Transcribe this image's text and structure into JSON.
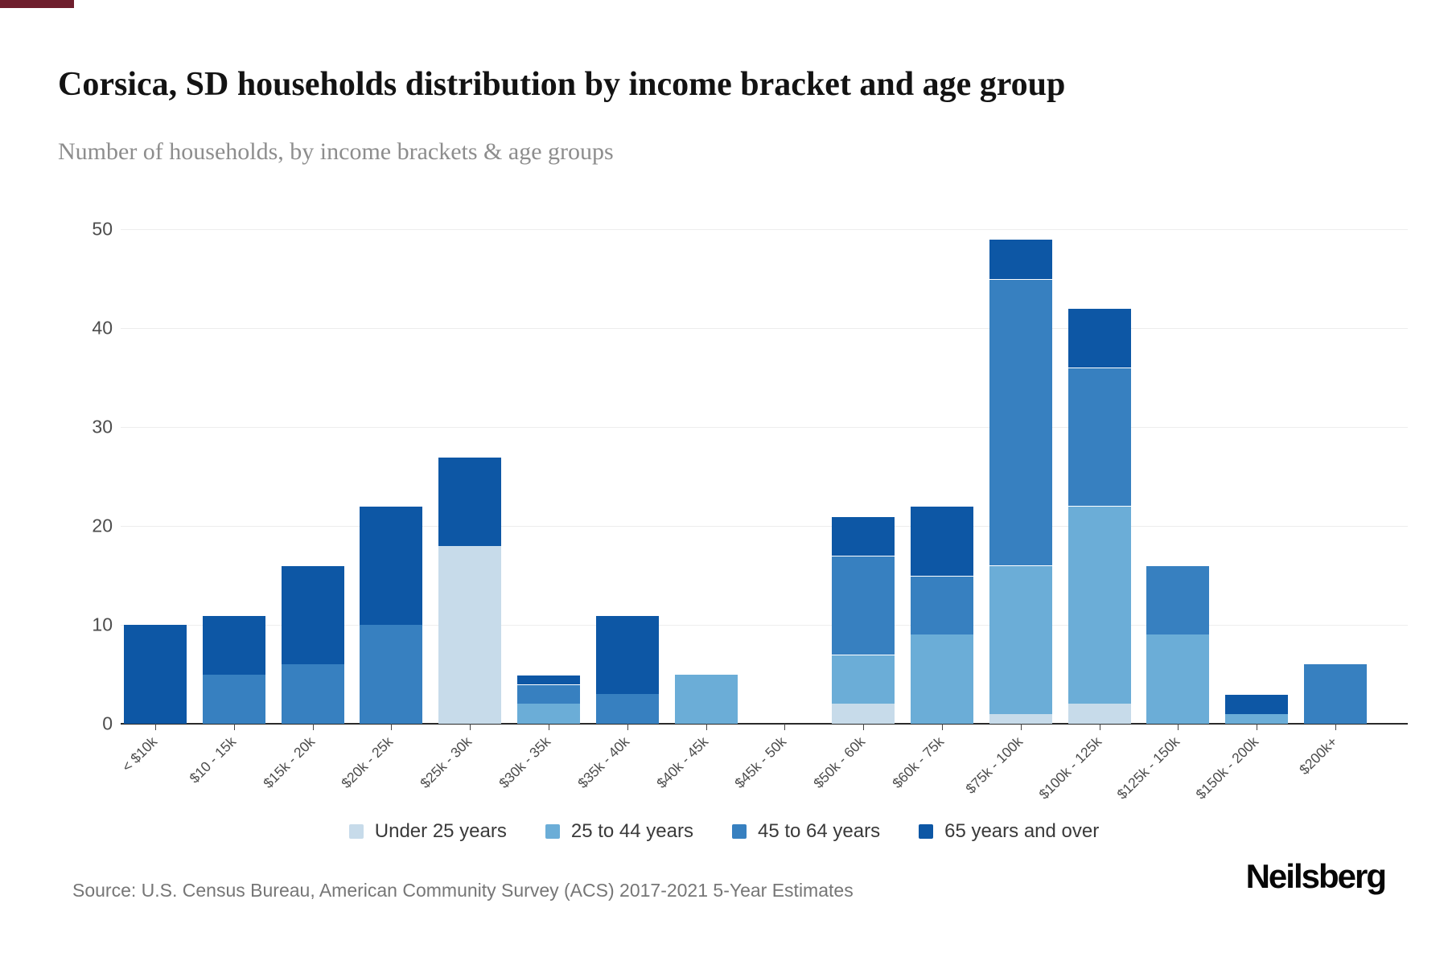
{
  "page": {
    "title": "Corsica, SD households distribution by income bracket and age group",
    "subtitle": "Number of households, by income brackets & age groups",
    "source": "Source: U.S. Census Bureau, American Community Survey (ACS) 2017-2021 5-Year Estimates",
    "brand": "Neilsberg",
    "top_bar_color": "#6e1e2d"
  },
  "chart_data": {
    "type": "bar",
    "stacked": true,
    "title": "Corsica, SD households distribution by income bracket and age group",
    "subtitle": "Number of households, by income brackets & age groups",
    "xlabel": "",
    "ylabel": "Number of households",
    "ylim": [
      0,
      50
    ],
    "yticks": [
      0,
      10,
      20,
      30,
      40,
      50
    ],
    "grid": true,
    "legend_position": "bottom",
    "categories": [
      "< $10k",
      "$10 - 15k",
      "$15k - 20k",
      "$20k - 25k",
      "$25k - 30k",
      "$30k - 35k",
      "$35k - 40k",
      "$40k - 45k",
      "$45k - 50k",
      "$50k - 60k",
      "$60k - 75k",
      "$75k - 100k",
      "$100k - 125k",
      "$125k - 150k",
      "$150k - 200k",
      "$200k+"
    ],
    "series": [
      {
        "name": "Under 25 years",
        "color": "#c7dbea",
        "values": [
          0,
          0,
          0,
          0,
          18,
          0,
          0,
          0,
          0,
          2,
          0,
          1,
          2,
          0,
          0,
          0
        ]
      },
      {
        "name": "25 to 44 years",
        "color": "#6badd7",
        "values": [
          0,
          0,
          0,
          0,
          0,
          2,
          0,
          5,
          0,
          5,
          9,
          15,
          20,
          9,
          1,
          0
        ]
      },
      {
        "name": "45 to 64 years",
        "color": "#3780c0",
        "values": [
          0,
          5,
          6,
          10,
          0,
          2,
          3,
          0,
          0,
          10,
          6,
          29,
          14,
          7,
          0,
          6
        ]
      },
      {
        "name": "65 years and over",
        "color": "#0d57a5",
        "values": [
          10,
          6,
          10,
          12,
          9,
          1,
          8,
          0,
          0,
          4,
          7,
          4,
          6,
          0,
          2,
          0
        ]
      }
    ],
    "totals": [
      10,
      11,
      16,
      22,
      27,
      5,
      11,
      5,
      0,
      21,
      22,
      49,
      42,
      16,
      3,
      6
    ]
  }
}
